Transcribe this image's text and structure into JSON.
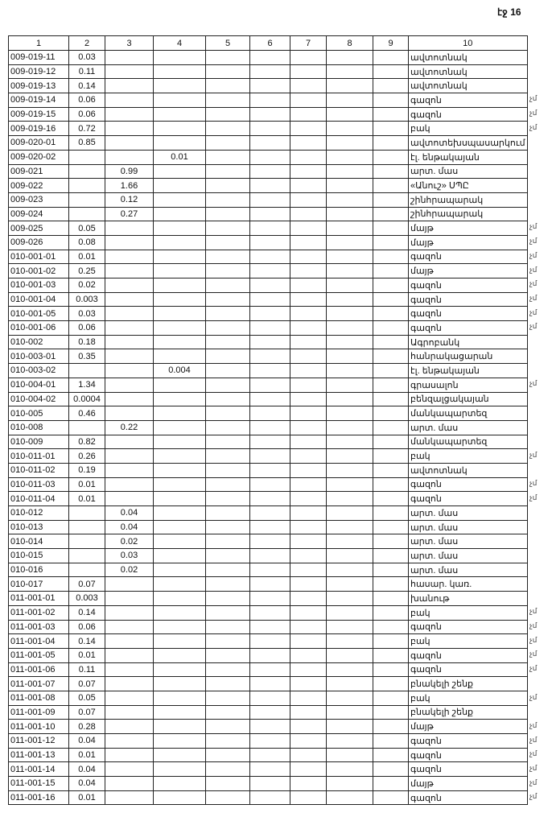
{
  "page_label": "էջ 16",
  "headers": [
    "1",
    "2",
    "3",
    "4",
    "5",
    "6",
    "7",
    "8",
    "9",
    "10"
  ],
  "rows": [
    [
      "009-019-11",
      "0.03",
      "",
      "",
      "ավտոտնակ",
      ""
    ],
    [
      "009-019-12",
      "0.11",
      "",
      "",
      "ավտոտնակ",
      ""
    ],
    [
      "009-019-13",
      "0.14",
      "",
      "",
      "ավտոտնակ",
      ""
    ],
    [
      "009-019-14",
      "0.06",
      "",
      "",
      "գազոն",
      "չմ"
    ],
    [
      "009-019-15",
      "0.06",
      "",
      "",
      "գազոն",
      "չմ"
    ],
    [
      "009-019-16",
      "0.72",
      "",
      "",
      "բակ",
      "չմ"
    ],
    [
      "009-020-01",
      "0.85",
      "",
      "",
      "ավտոտեխսպասարկում",
      ""
    ],
    [
      "009-020-02",
      "",
      "",
      "0.01",
      "էլ. ենթակայան",
      ""
    ],
    [
      "009-021",
      "",
      "0.99",
      "",
      "արտ. մաս",
      ""
    ],
    [
      "009-022",
      "",
      "1.66",
      "",
      "«Անուշ» ՍՊԸ",
      ""
    ],
    [
      "009-023",
      "",
      "0.12",
      "",
      "շինհրապարակ",
      ""
    ],
    [
      "009-024",
      "",
      "0.27",
      "",
      "շինհրապարակ",
      ""
    ],
    [
      "009-025",
      "0.05",
      "",
      "",
      "մայթ",
      "չմ"
    ],
    [
      "009-026",
      "0.08",
      "",
      "",
      "մայթ",
      "չմ"
    ],
    [
      "010-001-01",
      "0.01",
      "",
      "",
      "գազոն",
      "չմ"
    ],
    [
      "010-001-02",
      "0.25",
      "",
      "",
      "մայթ",
      "չմ"
    ],
    [
      "010-001-03",
      "0.02",
      "",
      "",
      "գազոն",
      "չմ"
    ],
    [
      "010-001-04",
      "0.003",
      "",
      "",
      "գազոն",
      "չմ"
    ],
    [
      "010-001-05",
      "0.03",
      "",
      "",
      "գազոն",
      "չմ"
    ],
    [
      "010-001-06",
      "0.06",
      "",
      "",
      "գազոն",
      "չմ"
    ],
    [
      "010-002",
      "0.18",
      "",
      "",
      "Ագրոբանկ",
      ""
    ],
    [
      "010-003-01",
      "0.35",
      "",
      "",
      "հանրակացարան",
      ""
    ],
    [
      "010-003-02",
      "",
      "",
      "0.004",
      "էլ. ենթակայան",
      ""
    ],
    [
      "010-004-01",
      "1.34",
      "",
      "",
      "գրասալոն",
      "չմ"
    ],
    [
      "010-004-02",
      "0.0004",
      "",
      "",
      "բենզալցակայան",
      ""
    ],
    [
      "010-005",
      "0.46",
      "",
      "",
      "մանկապարտեզ",
      ""
    ],
    [
      "010-008",
      "",
      "0.22",
      "",
      "արտ. մաս",
      ""
    ],
    [
      "010-009",
      "0.82",
      "",
      "",
      "մանկապարտեզ",
      ""
    ],
    [
      "010-011-01",
      "0.26",
      "",
      "",
      "բակ",
      "չմ"
    ],
    [
      "010-011-02",
      "0.19",
      "",
      "",
      "ավտոտնակ",
      ""
    ],
    [
      "010-011-03",
      "0.01",
      "",
      "",
      "գազոն",
      "չմ"
    ],
    [
      "010-011-04",
      "0.01",
      "",
      "",
      "գազոն",
      "չմ"
    ],
    [
      "010-012",
      "",
      "0.04",
      "",
      "արտ. մաս",
      ""
    ],
    [
      "010-013",
      "",
      "0.04",
      "",
      "արտ. մաս",
      ""
    ],
    [
      "010-014",
      "",
      "0.02",
      "",
      "արտ. մաս",
      ""
    ],
    [
      "010-015",
      "",
      "0.03",
      "",
      "արտ. մաս",
      ""
    ],
    [
      "010-016",
      "",
      "0.02",
      "",
      "արտ. մաս",
      ""
    ],
    [
      "010-017",
      "0.07",
      "",
      "",
      "հասար. կառ.",
      ""
    ],
    [
      "011-001-01",
      "0.003",
      "",
      "",
      "խանութ",
      ""
    ],
    [
      "011-001-02",
      "0.14",
      "",
      "",
      "բակ",
      "չմ"
    ],
    [
      "011-001-03",
      "0.06",
      "",
      "",
      "գազոն",
      "չմ"
    ],
    [
      "011-001-04",
      "0.14",
      "",
      "",
      "բակ",
      "չմ"
    ],
    [
      "011-001-05",
      "0.01",
      "",
      "",
      "գազոն",
      "չմ"
    ],
    [
      "011-001-06",
      "0.11",
      "",
      "",
      "գազոն",
      "չմ"
    ],
    [
      "011-001-07",
      "0.07",
      "",
      "",
      "բնակելի շենք",
      ""
    ],
    [
      "011-001-08",
      "0.05",
      "",
      "",
      "բակ",
      "չմ"
    ],
    [
      "011-001-09",
      "0.07",
      "",
      "",
      "բնակելի շենք",
      ""
    ],
    [
      "011-001-10",
      "0.28",
      "",
      "",
      "մայթ",
      "չմ"
    ],
    [
      "011-001-12",
      "0.04",
      "",
      "",
      "գազոն",
      "չմ"
    ],
    [
      "011-001-13",
      "0.01",
      "",
      "",
      "գազոն",
      "չմ"
    ],
    [
      "011-001-14",
      "0.04",
      "",
      "",
      "գազոն",
      "չմ"
    ],
    [
      "011-001-15",
      "0.04",
      "",
      "",
      "մայթ",
      "չմ"
    ],
    [
      "011-001-16",
      "0.01",
      "",
      "",
      "գազոն",
      "չմ"
    ]
  ]
}
